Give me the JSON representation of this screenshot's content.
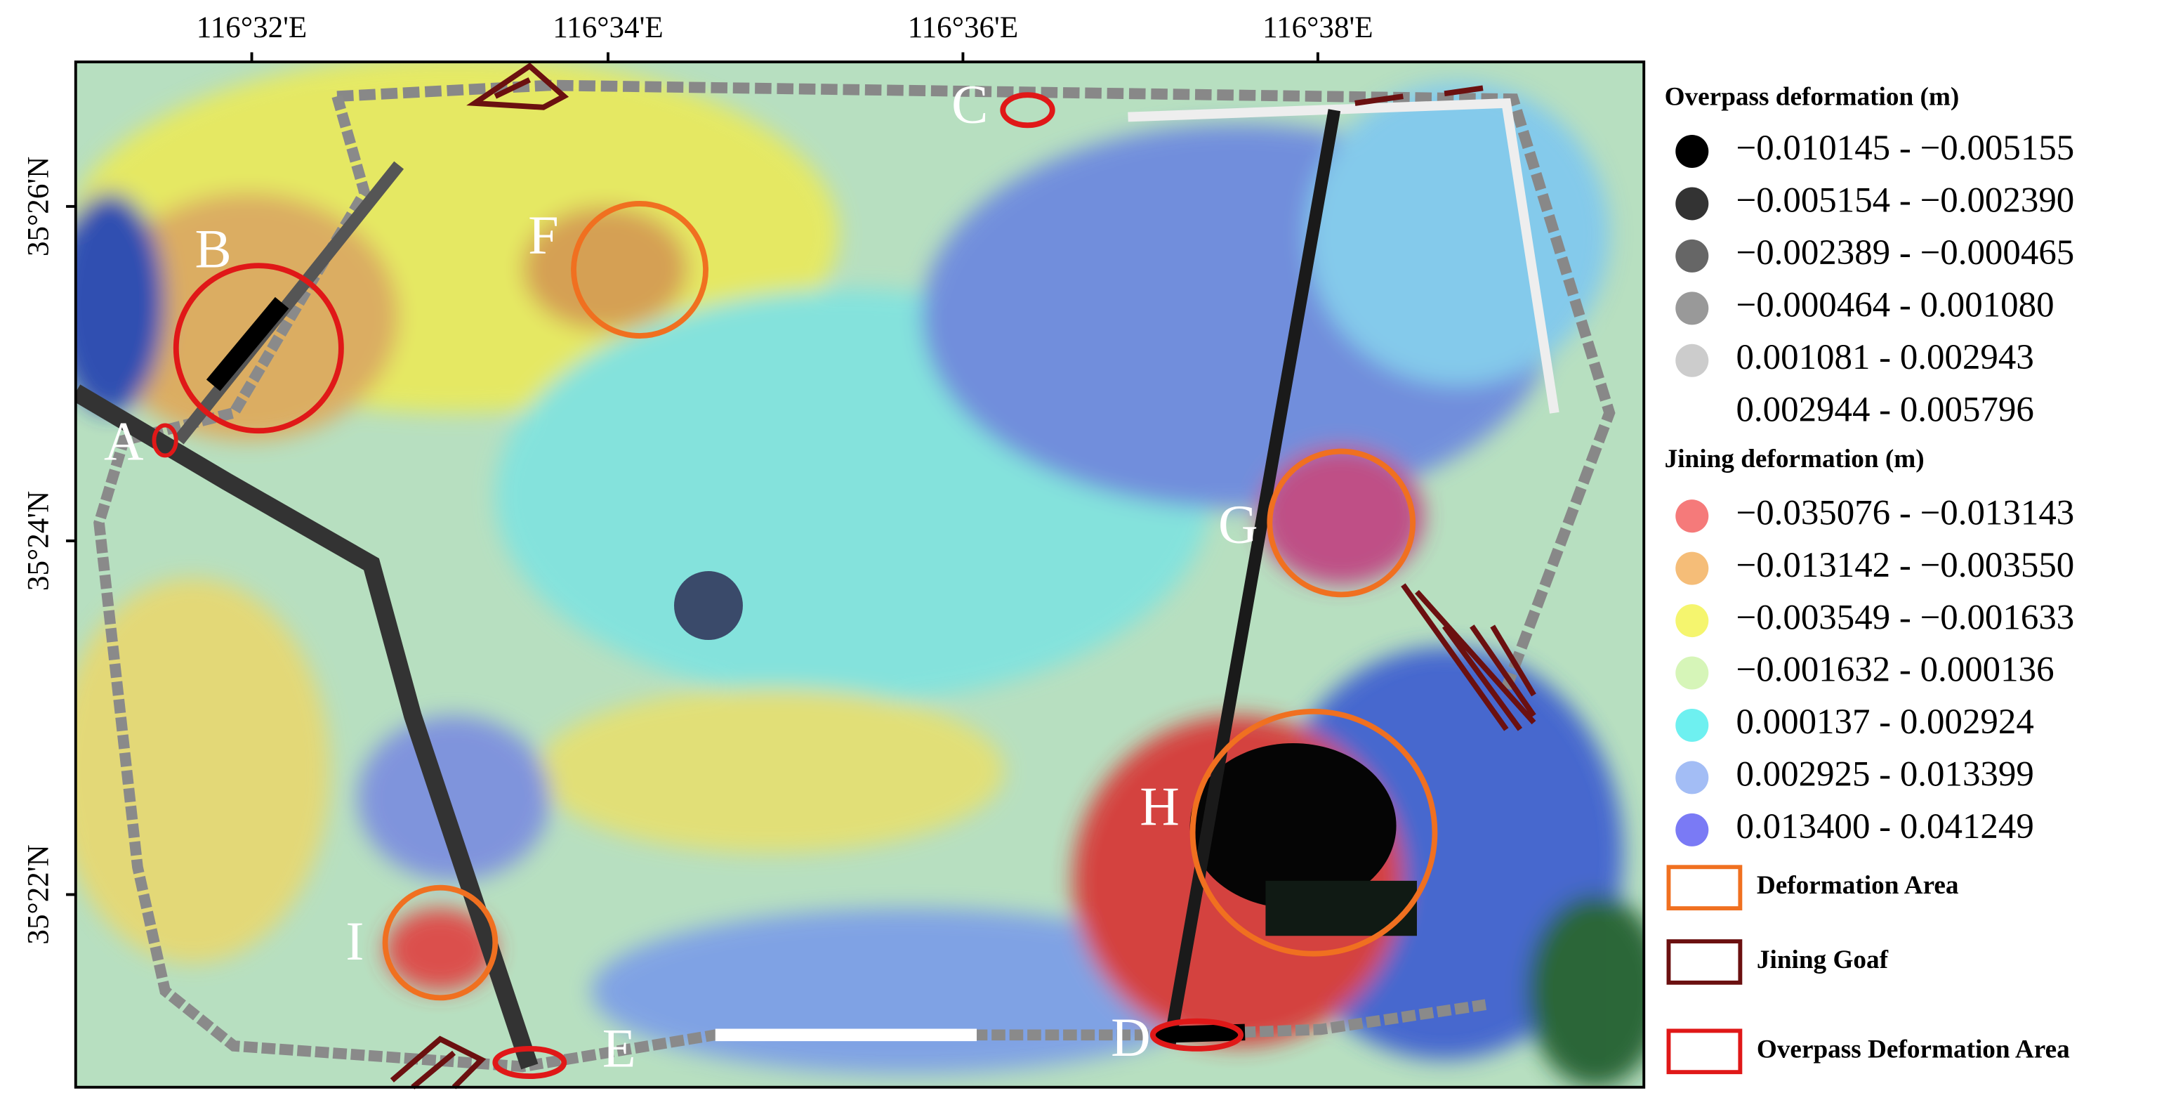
{
  "map": {
    "lon_labels": [
      "116°32'E",
      "116°34'E",
      "116°36'E",
      "116°38'E"
    ],
    "lat_labels": [
      "35°26'N",
      "35°24'N",
      "35°22'N"
    ],
    "area_labels": [
      "A",
      "B",
      "C",
      "D",
      "E",
      "F",
      "G",
      "H",
      "I"
    ]
  },
  "legend": {
    "overpass": {
      "title": "Overpass deformation (m)",
      "items": [
        {
          "label": "−0.010145 - −0.005155",
          "color": "#000000"
        },
        {
          "label": "−0.005154 - −0.002390",
          "color": "#333333"
        },
        {
          "label": "−0.002389 - −0.000465",
          "color": "#666666"
        },
        {
          "label": "−0.000464 - 0.001080",
          "color": "#999999"
        },
        {
          "label": "0.001081 - 0.002943",
          "color": "#cccccc"
        },
        {
          "label": "0.002944 - 0.005796",
          "color": "#ffffff"
        }
      ]
    },
    "jining": {
      "title": "Jining deformation (m)",
      "items": [
        {
          "label": "−0.035076 - −0.013143",
          "color": "#f57a7a"
        },
        {
          "label": "−0.013142 - −0.003550",
          "color": "#f5bd78"
        },
        {
          "label": "−0.003549 - −0.001633",
          "color": "#f5f56e"
        },
        {
          "label": "−0.001632 - 0.000136",
          "color": "#d6f5b8"
        },
        {
          "label": "0.000137 - 0.002924",
          "color": "#6ef0f0"
        },
        {
          "label": "0.002925 - 0.013399",
          "color": "#a3bdf5"
        },
        {
          "label": "0.013400 - 0.041249",
          "color": "#7a7af5"
        }
      ]
    },
    "symbols": [
      {
        "label": "Deformation Area",
        "color": "#f07020"
      },
      {
        "label": "Jining Goaf",
        "color": "#6b1010"
      },
      {
        "label": "Overpass Deformation Area",
        "color": "#e01818"
      }
    ]
  }
}
